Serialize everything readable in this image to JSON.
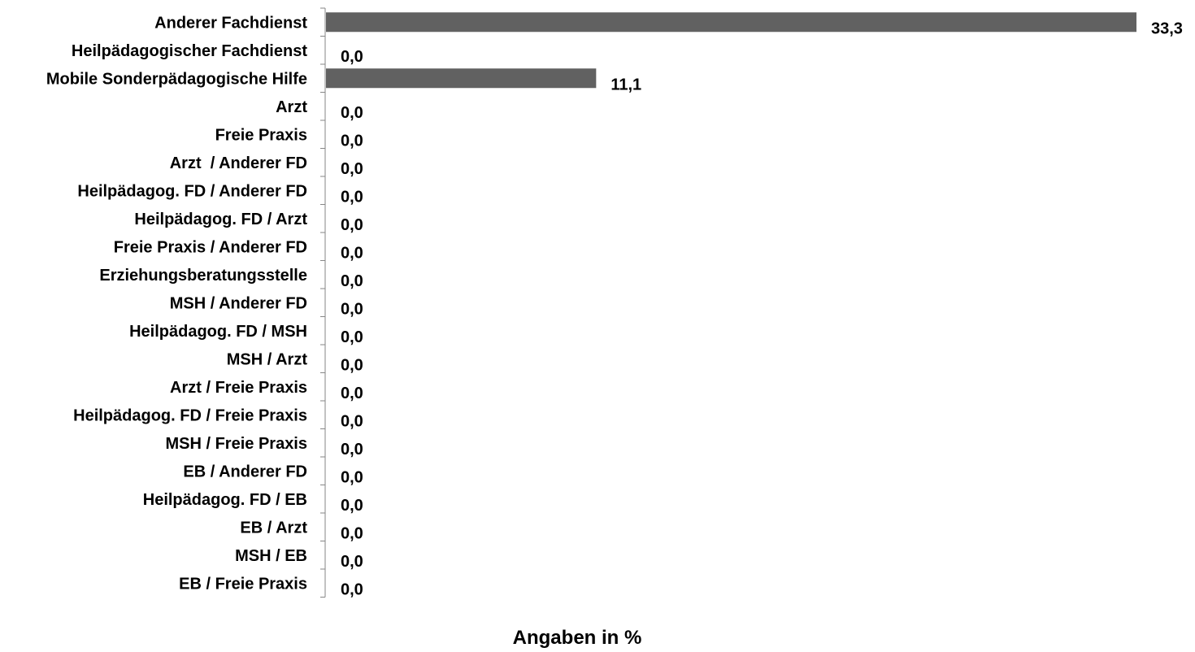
{
  "chart_data": {
    "type": "bar",
    "orientation": "horizontal",
    "title": "",
    "xlabel": "Angaben in %",
    "ylabel": "",
    "categories": [
      "Anderer Fachdienst",
      "Heilpädagogischer Fachdienst",
      "Mobile Sonderpädagogische Hilfe",
      "Arzt",
      "Freie Praxis",
      "Arzt  / Anderer FD",
      "Heilpädagog. FD / Anderer FD",
      "Heilpädagog. FD / Arzt",
      "Freie Praxis / Anderer FD",
      "Erziehungsberatungsstelle",
      "MSH / Anderer FD",
      "Heilpädagog. FD / MSH",
      "MSH / Arzt",
      "Arzt / Freie Praxis",
      "Heilpädagog. FD / Freie Praxis",
      "MSH / Freie Praxis",
      "EB / Anderer FD",
      "Heilpädagog. FD / EB",
      "EB / Arzt",
      "MSH / EB",
      "EB / Freie Praxis"
    ],
    "values": [
      33.3,
      0.0,
      11.1,
      0.0,
      0.0,
      0.0,
      0.0,
      0.0,
      0.0,
      0.0,
      0.0,
      0.0,
      0.0,
      0.0,
      0.0,
      0.0,
      0.0,
      0.0,
      0.0,
      0.0,
      0.0
    ],
    "value_labels": [
      "33,3",
      "0,0",
      "11,1",
      "0,0",
      "0,0",
      "0,0",
      "0,0",
      "0,0",
      "0,0",
      "0,0",
      "0,0",
      "0,0",
      "0,0",
      "0,0",
      "0,0",
      "0,0",
      "0,0",
      "0,0",
      "0,0",
      "0,0",
      "0,0"
    ],
    "xlim": [
      0,
      33.3
    ],
    "bar_color": "#616161",
    "grid": false,
    "legend": "none"
  }
}
